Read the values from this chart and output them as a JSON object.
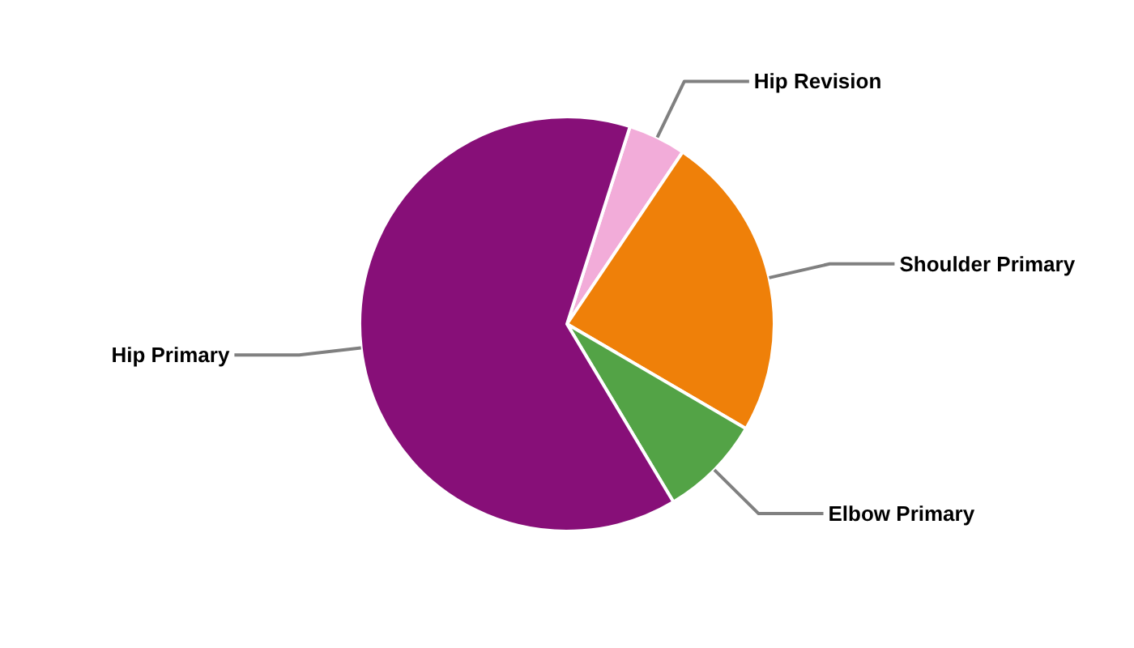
{
  "chart_data": {
    "type": "pie",
    "categories": [
      "Hip Revision",
      "Shoulder Primary",
      "Elbow Primary",
      "Hip Primary"
    ],
    "values": [
      4.5,
      24,
      8,
      63.5
    ],
    "colors": [
      "#f2acd9",
      "#ef8009",
      "#53a346",
      "#870f78"
    ]
  }
}
